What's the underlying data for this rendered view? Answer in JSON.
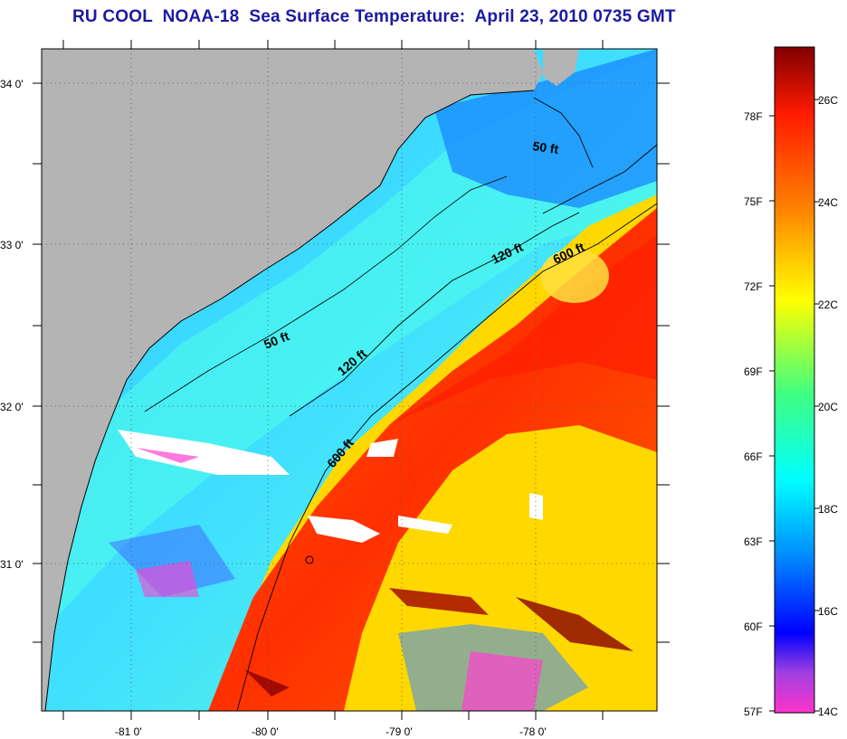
{
  "title": "RU COOL  NOAA-18  Sea Surface Temperature:  April 23, 2010 0735 GMT",
  "map": {
    "lat_labels": [
      "34 0'",
      "33 0'",
      "32 0'",
      "31 0'"
    ],
    "lon_labels": [
      "-81 0'",
      "-80 0'",
      "-79 0'",
      "-78 0'"
    ],
    "contours": [
      "50 ft",
      "50 ft",
      "120 ft",
      "120 ft",
      "600 ft",
      "600 ft"
    ],
    "land_color": "#b4b4b4",
    "cloud_color": "#ffffff"
  },
  "colorbar": {
    "fahrenheit_labels": [
      "78F",
      "75F",
      "72F",
      "69F",
      "66F",
      "63F",
      "60F",
      "57F"
    ],
    "celsius_labels": [
      "26C",
      "24C",
      "22C",
      "20C",
      "18C",
      "16C",
      "14C"
    ],
    "colors": [
      "#ff33cc",
      "#a040e0",
      "#0000ff",
      "#0090ff",
      "#00ffff",
      "#40ff80",
      "#ffff00",
      "#ff8000",
      "#ff1a00",
      "#800000"
    ]
  }
}
